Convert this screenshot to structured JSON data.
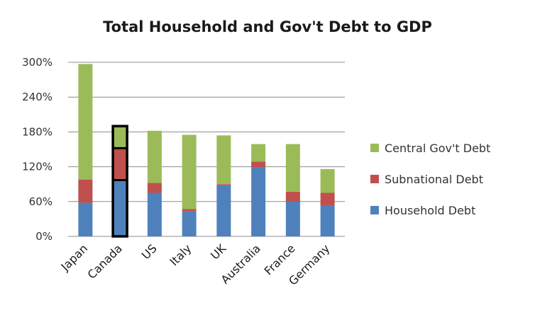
{
  "chart_data": {
    "type": "bar",
    "stacked": true,
    "title": "Total Household and Gov't Debt to GDP",
    "xlabel": "",
    "ylabel": "",
    "ylim": [
      0,
      300
    ],
    "yticks": [
      0,
      60,
      120,
      180,
      240,
      300
    ],
    "ytick_labels": [
      "0%",
      "60%",
      "120%",
      "180%",
      "240%",
      "300%"
    ],
    "grid": true,
    "legend_position": "right",
    "categories": [
      "Japan",
      "Canada",
      "US",
      "Italy",
      "UK",
      "Australia",
      "France",
      "Germany"
    ],
    "highlighted_category": "Canada",
    "series": [
      {
        "name": "Household Debt",
        "color": "#4f81bd",
        "values": [
          58,
          97,
          75,
          43,
          88,
          119,
          60,
          53
        ]
      },
      {
        "name": "Subnational Debt",
        "color": "#c0504d",
        "values": [
          40,
          55,
          17,
          4,
          2,
          10,
          17,
          22
        ]
      },
      {
        "name": "Central Gov't Debt",
        "color": "#9bbb59",
        "values": [
          199,
          38,
          90,
          128,
          84,
          30,
          82,
          41
        ]
      }
    ]
  }
}
